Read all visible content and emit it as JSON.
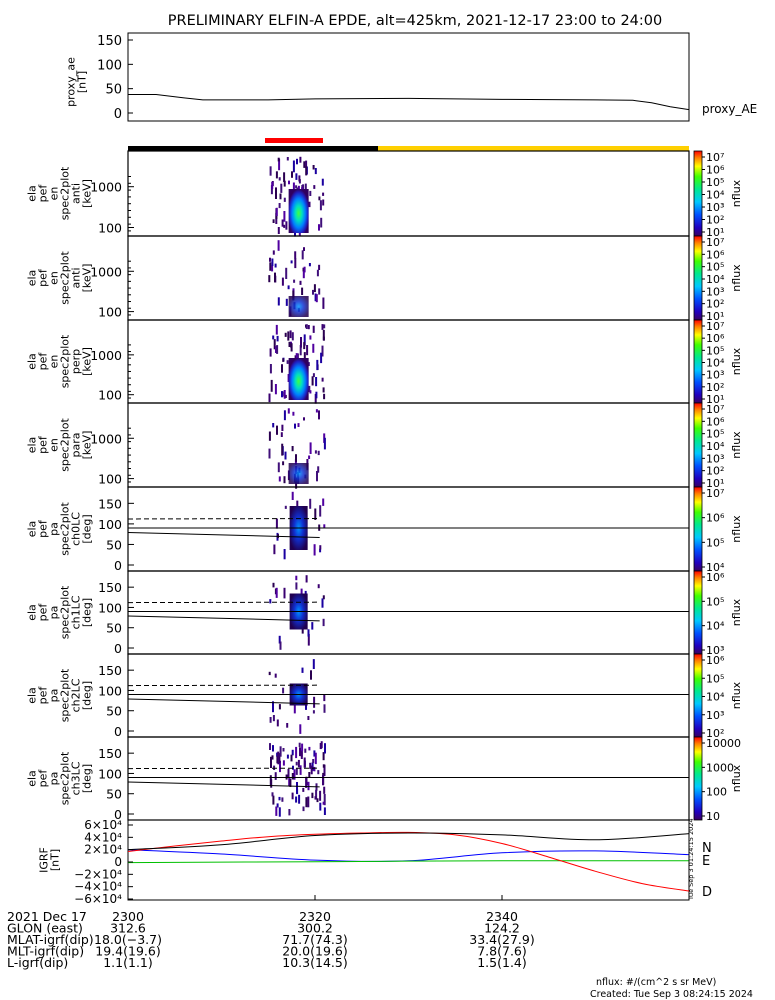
{
  "title": "PRELIMINARY ELFIN-A EPDE, alt=425km, 2021-12-17 23:00 to 24:00",
  "colors": {
    "sci_zone": "#ff0000",
    "eclipse": "#000000",
    "sunlit": "#ffd000",
    "N": "#0000ff",
    "E": "#00c000",
    "D": "#ff0000",
    "H": "#000000"
  },
  "panels": {
    "ae": {
      "ylabel": [
        "proxy_ae",
        "[nT]"
      ],
      "ticks": [
        "150",
        "100",
        "50",
        "0"
      ],
      "legend": "proxy_AE"
    },
    "spec": [
      {
        "ylabel": [
          "ela",
          "pef",
          "en",
          "spec2plot",
          "anti",
          "[keV]"
        ],
        "ticks": [
          "1000",
          "100"
        ],
        "cbar": [
          "10⁷",
          "10⁶",
          "10⁵",
          "10⁴",
          "10³",
          "10²",
          "10¹"
        ],
        "cbar_label": "nflux"
      },
      {
        "ylabel": [
          "ela",
          "pef",
          "en",
          "spec2plot",
          "anti",
          "[keV]"
        ],
        "ticks": [
          "1000",
          "100"
        ],
        "cbar": [
          "10⁷",
          "10⁶",
          "10⁵",
          "10⁴",
          "10³",
          "10²",
          "10¹"
        ],
        "cbar_label": "nflux"
      },
      {
        "ylabel": [
          "ela",
          "pef",
          "en",
          "spec2plot",
          "perp",
          "[keV]"
        ],
        "ticks": [
          "1000",
          "100"
        ],
        "cbar": [
          "10⁷",
          "10⁶",
          "10⁵",
          "10⁴",
          "10³",
          "10²",
          "10¹"
        ],
        "cbar_label": "nflux"
      },
      {
        "ylabel": [
          "ela",
          "pef",
          "en",
          "spec2plot",
          "para",
          "[keV]"
        ],
        "ticks": [
          "1000",
          "100"
        ],
        "cbar": [
          "10⁷",
          "10⁶",
          "10⁵",
          "10⁴",
          "10³",
          "10²",
          "10¹"
        ],
        "cbar_label": "nflux"
      }
    ],
    "pa": [
      {
        "ylabel": [
          "ela",
          "pef",
          "pa",
          "spec2plot",
          "ch0LC",
          "[deg]"
        ],
        "ticks": [
          "150",
          "100",
          "50",
          "0"
        ],
        "cbar": [
          "10⁷",
          "10⁶",
          "10⁵",
          "10⁴"
        ],
        "cbar_label": "nflux"
      },
      {
        "ylabel": [
          "ela",
          "pef",
          "pa",
          "spec2plot",
          "ch1LC",
          "[deg]"
        ],
        "ticks": [
          "150",
          "100",
          "50",
          "0"
        ],
        "cbar": [
          "10⁶",
          "10⁵",
          "10⁴",
          "10³"
        ],
        "cbar_label": "nflux"
      },
      {
        "ylabel": [
          "ela",
          "pef",
          "pa",
          "spec2plot",
          "ch2LC",
          "[deg]"
        ],
        "ticks": [
          "150",
          "100",
          "50",
          "0"
        ],
        "cbar": [
          "10⁶",
          "10⁵",
          "10⁴",
          "10³",
          "10²"
        ],
        "cbar_label": "nflux"
      },
      {
        "ylabel": [
          "ela",
          "pef",
          "pa",
          "spec2plot",
          "ch3LC",
          "[deg]"
        ],
        "ticks": [
          "150",
          "100",
          "50",
          "0"
        ],
        "cbar": [
          "10000",
          "1000",
          "100",
          "10"
        ],
        "cbar_label": "nflux"
      }
    ],
    "igrf": {
      "ylabel": [
        "IGRF",
        "[nT]"
      ],
      "ticks": [
        "6×10⁴",
        "4×10⁴",
        "2×10⁴",
        "0",
        "−2×10⁴",
        "−4×10⁴",
        "−6×10⁴"
      ],
      "legend": [
        "N",
        "E",
        "D"
      ]
    }
  },
  "chart_data": {
    "type": "line",
    "title": "PRELIMINARY ELFIN-A EPDE, alt=425km, 2021-12-17 23:00 to 24:00",
    "x_range": [
      "23:00",
      "24:00"
    ],
    "proxy_ae": {
      "ylim": [
        0,
        150
      ],
      "x_min": [
        0,
        3,
        6,
        8,
        10,
        15,
        20,
        30,
        40,
        50,
        54,
        56,
        58,
        60
      ],
      "values": [
        38,
        38,
        31,
        27,
        27,
        27,
        29,
        30,
        28,
        27,
        26,
        21,
        13,
        7
      ]
    },
    "orbit_bar": [
      {
        "state": "science zone",
        "start_min": 15,
        "end_min": 21
      },
      {
        "state": "eclipse",
        "start_min": 0,
        "end_min": 27
      },
      {
        "state": "sunlit",
        "start_min": 27,
        "end_min": 60
      }
    ],
    "spectrograms": {
      "energy_ylim_keV": [
        50,
        7000
      ],
      "pitch_angle_ylim_deg": [
        0,
        180
      ],
      "activity_window_min": [
        15,
        21
      ],
      "peak_window_min": [
        17.5,
        19
      ],
      "loss_cone_deg": {
        "x_min": [
          0,
          20.5
        ],
        "values": [
          79,
          67
        ]
      },
      "anti_loss_cone_deg": {
        "x_min": [
          0,
          20.5
        ],
        "values": [
          112,
          113
        ]
      },
      "reference_deg": 90
    },
    "igrf": {
      "ylim": [
        -60000,
        60000
      ],
      "series": [
        {
          "name": "N",
          "x_min": [
            0,
            10,
            20,
            30,
            40,
            50,
            60
          ],
          "values": [
            20000,
            13000,
            3000,
            2000,
            15000,
            18000,
            12000
          ]
        },
        {
          "name": "E",
          "x_min": [
            0,
            20,
            40,
            60
          ],
          "values": [
            -1000,
            500,
            2000,
            2000
          ]
        },
        {
          "name": "D",
          "x_min": [
            0,
            5,
            10,
            15,
            20,
            25,
            30,
            35,
            40,
            45,
            50,
            55,
            60
          ],
          "values": [
            17000,
            26000,
            34000,
            41000,
            45000,
            47000,
            48000,
            44000,
            30000,
            8000,
            -15000,
            -35000,
            -47000
          ]
        },
        {
          "name": "H",
          "x_min": [
            0,
            10,
            20,
            30,
            40,
            50,
            60
          ],
          "values": [
            20000,
            28000,
            43000,
            47000,
            44000,
            36000,
            46000
          ]
        }
      ]
    }
  },
  "xaxis": {
    "rows": [
      {
        "label": "2021 Dec 17",
        "values": [
          "2300",
          "2320",
          "2340"
        ]
      },
      {
        "label": "GLON (east)",
        "values": [
          "312.6",
          "300.2",
          "124.2"
        ]
      },
      {
        "label": "MLAT-igrf(dip)",
        "values": [
          "18.0(−3.7)",
          "71.7(74.3)",
          "33.4(27.9)"
        ]
      },
      {
        "label": "MLT-igrf(dip)",
        "values": [
          "19.4(19.6)",
          "20.0(19.6)",
          "7.8(7.6)"
        ]
      },
      {
        "label": "L-igrf(dip)",
        "values": [
          "1.1(1.1)",
          "10.3(14.5)",
          "1.5(1.4)"
        ]
      }
    ]
  },
  "footer": {
    "units": "nflux: #/(cm^2 s sr MeV)",
    "created": "Created: Tue Sep  3 08:24:15 2024",
    "stamp": "Tue Sep  3 01:24:15 2024"
  }
}
